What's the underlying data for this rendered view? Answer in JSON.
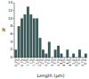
{
  "chart_data": {
    "type": "bar",
    "categories": [
      "0.25",
      "0.5",
      "0.75",
      "1.0",
      "1.25",
      "1.5",
      "1.75",
      "2.0",
      "2.25",
      "2.5",
      "2.75",
      "3.0",
      "3.25",
      "3.5",
      "3.75",
      "4.0",
      "4.25",
      "4.5",
      "4.75",
      "5.0",
      "5.25",
      "5.5",
      "5.75",
      "6.0"
    ],
    "values": [
      2,
      8,
      10,
      11,
      13,
      11,
      10,
      10,
      5,
      2,
      1,
      4,
      0,
      2,
      3,
      1,
      0,
      2,
      0,
      1,
      0,
      2,
      0,
      1
    ],
    "color": "#3d5a5a",
    "xlabel": "Length (µm)",
    "ylabel": "N",
    "ylim": [
      0,
      14
    ],
    "yticks": [
      0,
      2,
      4,
      6,
      8,
      10,
      12,
      14
    ]
  }
}
